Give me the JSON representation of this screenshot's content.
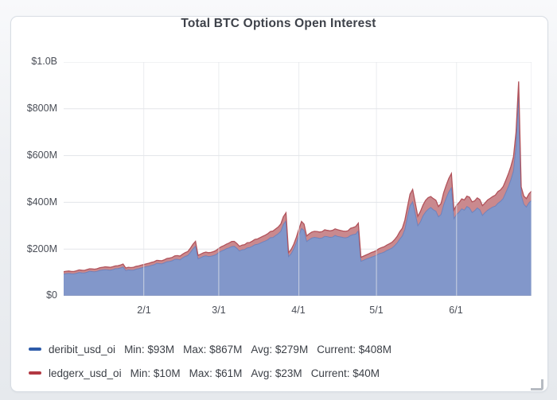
{
  "card": {
    "title": "Total BTC Options Open Interest"
  },
  "colors": {
    "card_background": "#ffffff",
    "card_border": "#d8dde4",
    "gridline": "#e3e5e9",
    "axis_zero_line": "#a7acb4",
    "axis_label": "#4a4e57",
    "title_text": "#3e424a",
    "legend_text": "#3b3f46",
    "deribit_fill": "#8297ca",
    "deribit_edge": "#617cbc",
    "deribit_swatch": "#2d5ba9",
    "ledgerx_fill": "#ca898e",
    "ledgerx_edge": "#b2535b",
    "ledgerx_swatch": "#b23842"
  },
  "legend": [
    {
      "name": "deribit_usd_oi",
      "stats": [
        "Min: $93M",
        "Max: $867M",
        "Avg: $279M",
        "Current: $408M"
      ]
    },
    {
      "name": "ledgerx_usd_oi",
      "stats": [
        "Min: $10M",
        "Max: $61M",
        "Avg: $23M",
        "Current: $40M"
      ]
    }
  ],
  "chart_data": {
    "type": "area",
    "stacked": true,
    "title": "Total BTC Options Open Interest",
    "y_unit": "USD millions",
    "ylim": [
      0,
      1000
    ],
    "grid": true,
    "legend_position": "bottom-left",
    "x_axis_note": "days since 1/1, daily data through late June",
    "x_days_total": 181,
    "y_ticks": [
      {
        "value": 1000,
        "label": "$1.0B"
      },
      {
        "value": 800,
        "label": "$800M"
      },
      {
        "value": 600,
        "label": "$600M"
      },
      {
        "value": 400,
        "label": "$400M"
      },
      {
        "value": 200,
        "label": "$200M"
      },
      {
        "value": 0,
        "label": "$0"
      }
    ],
    "x_ticks": [
      {
        "day": 31,
        "label": "2/1"
      },
      {
        "day": 60,
        "label": "3/1"
      },
      {
        "day": 91,
        "label": "4/1"
      },
      {
        "day": 121,
        "label": "5/1"
      },
      {
        "day": 152,
        "label": "6/1"
      }
    ],
    "series": [
      {
        "name": "deribit_usd_oi",
        "stats_musd": {
          "min": 93,
          "max": 867,
          "avg": 279,
          "current": 408
        },
        "noise_pct": 0.012,
        "points": [
          [
            0,
            93
          ],
          [
            2,
            96
          ],
          [
            4,
            94
          ],
          [
            6,
            100
          ],
          [
            8,
            98
          ],
          [
            10,
            105
          ],
          [
            12,
            103
          ],
          [
            14,
            109
          ],
          [
            16,
            112
          ],
          [
            18,
            110
          ],
          [
            20,
            116
          ],
          [
            22,
            119
          ],
          [
            23,
            123
          ],
          [
            24,
            108
          ],
          [
            25,
            111
          ],
          [
            27,
            110
          ],
          [
            29,
            116
          ],
          [
            31,
            122
          ],
          [
            33,
            127
          ],
          [
            35,
            133
          ],
          [
            36,
            139
          ],
          [
            38,
            137
          ],
          [
            40,
            146
          ],
          [
            42,
            150
          ],
          [
            43,
            156
          ],
          [
            45,
            154
          ],
          [
            46,
            162
          ],
          [
            48,
            172
          ],
          [
            49,
            185
          ],
          [
            50,
            200
          ],
          [
            51,
            212
          ],
          [
            52,
            158
          ],
          [
            53,
            163
          ],
          [
            55,
            171
          ],
          [
            56,
            168
          ],
          [
            58,
            172
          ],
          [
            60,
            185
          ],
          [
            62,
            196
          ],
          [
            64,
            205
          ],
          [
            66,
            212
          ],
          [
            68,
            192
          ],
          [
            70,
            198
          ],
          [
            73,
            212
          ],
          [
            76,
            225
          ],
          [
            79,
            240
          ],
          [
            82,
            258
          ],
          [
            84,
            276
          ],
          [
            85,
            305
          ],
          [
            86,
            320
          ],
          [
            87,
            168
          ],
          [
            88,
            180
          ],
          [
            89,
            200
          ],
          [
            90,
            226
          ],
          [
            91,
            258
          ],
          [
            92,
            288
          ],
          [
            93,
            280
          ],
          [
            94,
            232
          ],
          [
            95,
            240
          ],
          [
            97,
            250
          ],
          [
            99,
            246
          ],
          [
            101,
            254
          ],
          [
            103,
            250
          ],
          [
            105,
            258
          ],
          [
            107,
            252
          ],
          [
            109,
            248
          ],
          [
            111,
            258
          ],
          [
            113,
            264
          ],
          [
            114,
            278
          ],
          [
            115,
            148
          ],
          [
            116,
            152
          ],
          [
            117,
            157
          ],
          [
            118,
            161
          ],
          [
            119,
            165
          ],
          [
            120,
            169
          ],
          [
            121,
            173
          ],
          [
            123,
            183
          ],
          [
            125,
            194
          ],
          [
            127,
            204
          ],
          [
            128,
            214
          ],
          [
            129,
            226
          ],
          [
            130,
            242
          ],
          [
            131,
            256
          ],
          [
            132,
            284
          ],
          [
            133,
            338
          ],
          [
            134,
            385
          ],
          [
            135,
            402
          ],
          [
            136,
            352
          ],
          [
            137,
            300
          ],
          [
            138,
            316
          ],
          [
            139,
            342
          ],
          [
            140,
            358
          ],
          [
            141,
            370
          ],
          [
            142,
            378
          ],
          [
            143,
            368
          ],
          [
            144,
            362
          ],
          [
            145,
            338
          ],
          [
            146,
            348
          ],
          [
            147,
            388
          ],
          [
            148,
            418
          ],
          [
            149,
            444
          ],
          [
            150,
            462
          ],
          [
            151,
            330
          ],
          [
            152,
            348
          ],
          [
            153,
            358
          ],
          [
            154,
            372
          ],
          [
            155,
            366
          ],
          [
            156,
            382
          ],
          [
            157,
            376
          ],
          [
            158,
            356
          ],
          [
            159,
            364
          ],
          [
            160,
            376
          ],
          [
            161,
            368
          ],
          [
            162,
            344
          ],
          [
            163,
            356
          ],
          [
            164,
            366
          ],
          [
            166,
            380
          ],
          [
            168,
            396
          ],
          [
            170,
            416
          ],
          [
            171,
            440
          ],
          [
            172,
            466
          ],
          [
            173,
            496
          ],
          [
            174,
            534
          ],
          [
            175,
            640
          ],
          [
            176,
            867
          ],
          [
            177,
            430
          ],
          [
            178,
            392
          ],
          [
            179,
            380
          ],
          [
            180,
            398
          ],
          [
            181,
            408
          ]
        ]
      },
      {
        "name": "ledgerx_usd_oi",
        "stats_musd": {
          "min": 10,
          "max": 61,
          "avg": 23,
          "current": 40
        },
        "noise_pct": 0.05,
        "points": [
          [
            0,
            10
          ],
          [
            4,
            10
          ],
          [
            8,
            11
          ],
          [
            12,
            11
          ],
          [
            16,
            12
          ],
          [
            20,
            12
          ],
          [
            23,
            13
          ],
          [
            24,
            11
          ],
          [
            28,
            12
          ],
          [
            31,
            12
          ],
          [
            35,
            13
          ],
          [
            38,
            13
          ],
          [
            40,
            14
          ],
          [
            43,
            15
          ],
          [
            46,
            16
          ],
          [
            48,
            17
          ],
          [
            50,
            20
          ],
          [
            51,
            21
          ],
          [
            52,
            15
          ],
          [
            55,
            16
          ],
          [
            58,
            17
          ],
          [
            60,
            18
          ],
          [
            62,
            19
          ],
          [
            64,
            21
          ],
          [
            66,
            21
          ],
          [
            68,
            20
          ],
          [
            70,
            21
          ],
          [
            73,
            22
          ],
          [
            76,
            24
          ],
          [
            79,
            26
          ],
          [
            82,
            28
          ],
          [
            84,
            31
          ],
          [
            85,
            33
          ],
          [
            86,
            35
          ],
          [
            87,
            17
          ],
          [
            88,
            18
          ],
          [
            89,
            20
          ],
          [
            90,
            24
          ],
          [
            91,
            27
          ],
          [
            92,
            30
          ],
          [
            94,
            24
          ],
          [
            97,
            26
          ],
          [
            100,
            27
          ],
          [
            103,
            28
          ],
          [
            106,
            29
          ],
          [
            109,
            28
          ],
          [
            112,
            30
          ],
          [
            114,
            33
          ],
          [
            115,
            17
          ],
          [
            117,
            18
          ],
          [
            119,
            20
          ],
          [
            121,
            21
          ],
          [
            124,
            23
          ],
          [
            127,
            25
          ],
          [
            129,
            28
          ],
          [
            131,
            33
          ],
          [
            133,
            43
          ],
          [
            134,
            50
          ],
          [
            135,
            53
          ],
          [
            137,
            40
          ],
          [
            139,
            46
          ],
          [
            141,
            50
          ],
          [
            143,
            48
          ],
          [
            145,
            44
          ],
          [
            147,
            52
          ],
          [
            149,
            58
          ],
          [
            150,
            61
          ],
          [
            151,
            37
          ],
          [
            153,
            41
          ],
          [
            155,
            44
          ],
          [
            157,
            46
          ],
          [
            159,
            42
          ],
          [
            161,
            44
          ],
          [
            163,
            41
          ],
          [
            165,
            44
          ],
          [
            167,
            47
          ],
          [
            169,
            49
          ],
          [
            171,
            53
          ],
          [
            173,
            57
          ],
          [
            175,
            59
          ],
          [
            176,
            50
          ],
          [
            177,
            36
          ],
          [
            178,
            35
          ],
          [
            179,
            36
          ],
          [
            180,
            38
          ],
          [
            181,
            40
          ]
        ]
      }
    ]
  }
}
